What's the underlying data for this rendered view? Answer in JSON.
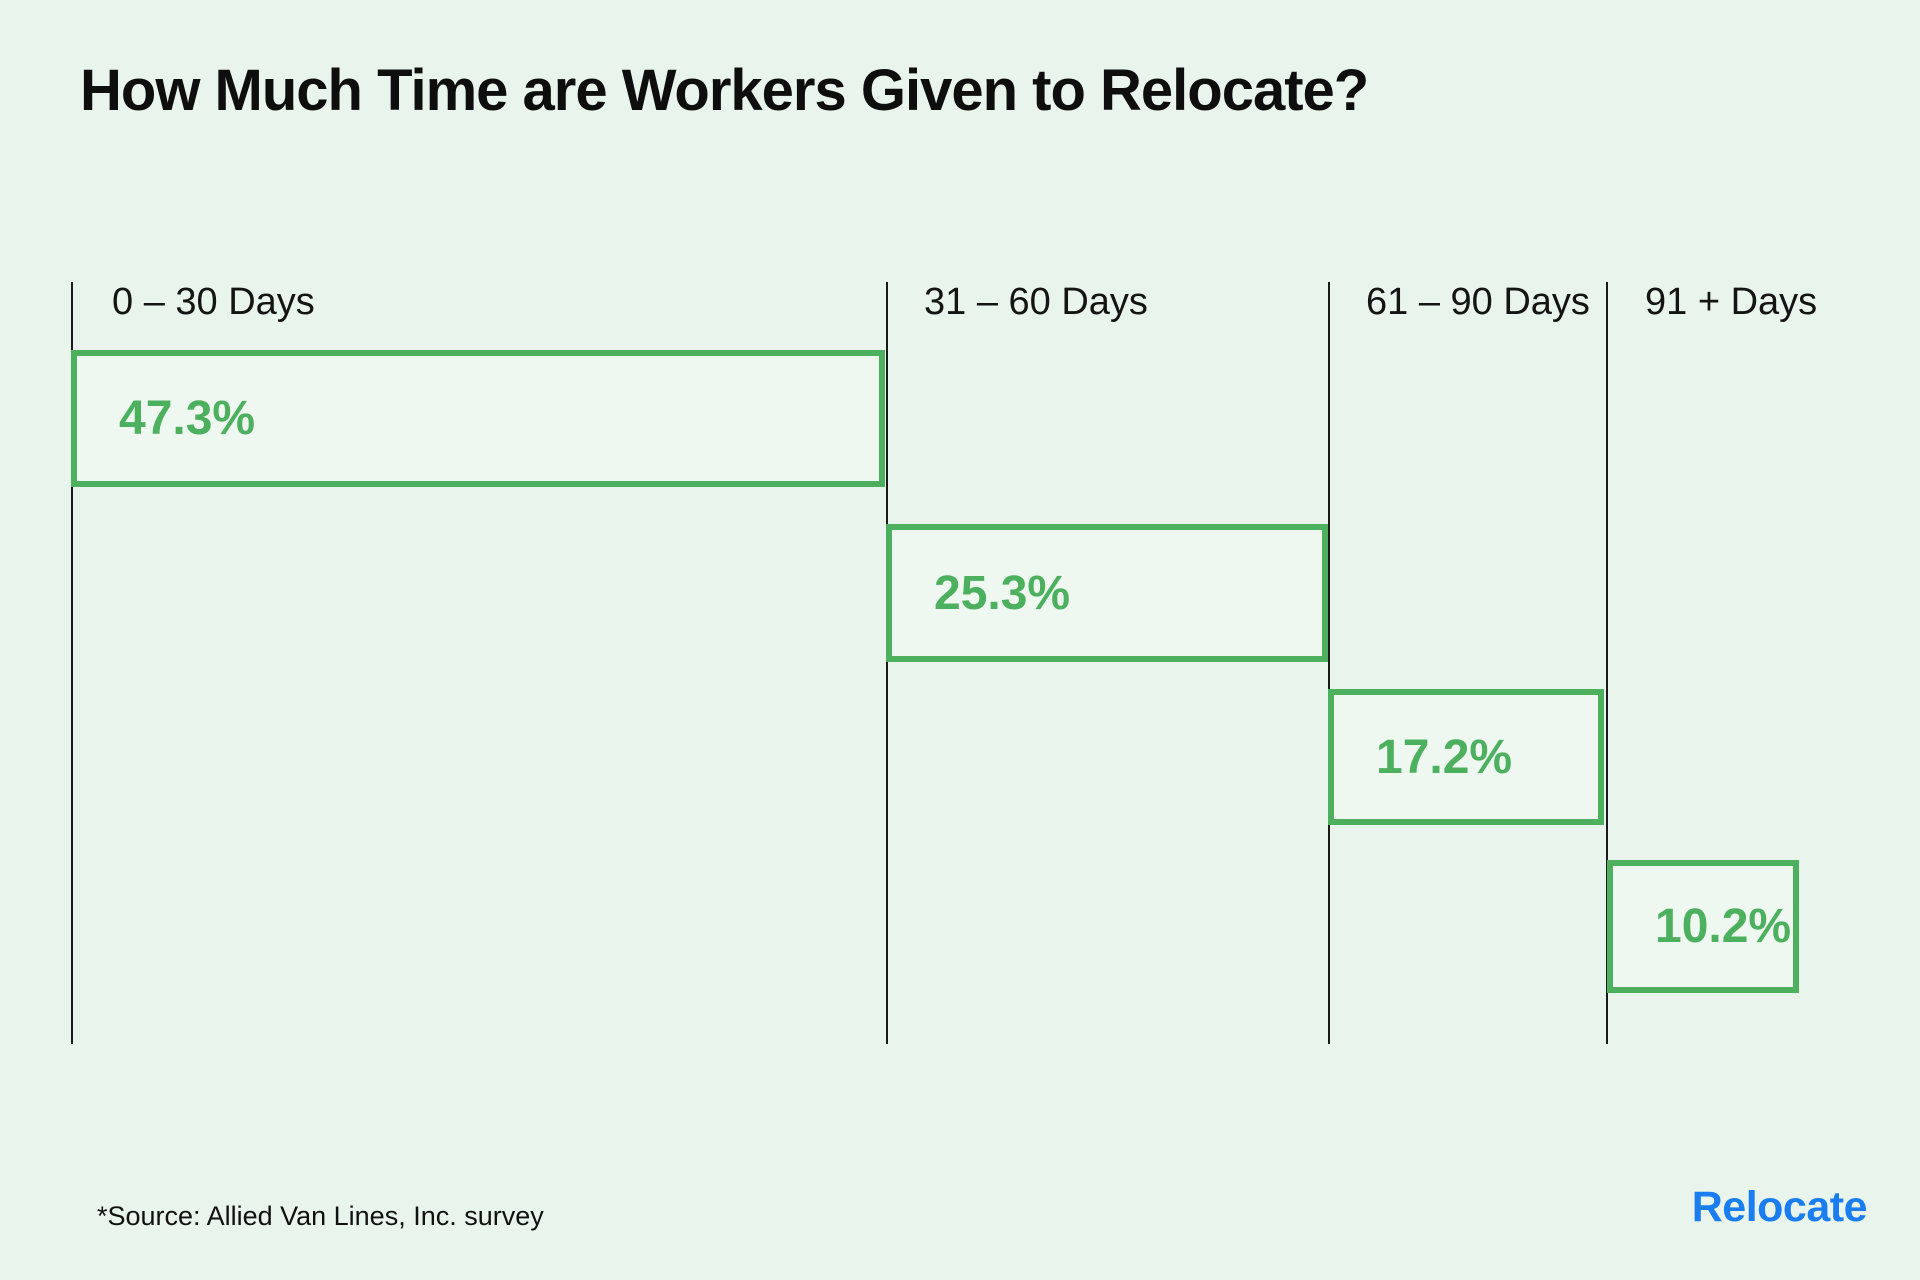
{
  "page": {
    "background_color": "#e9f5ec"
  },
  "header": {
    "title": "How Much Time are Workers Given to Relocate?"
  },
  "chart_data": {
    "type": "bar",
    "subtype": "cascading-horizontal-bars",
    "title": "How Much Time are Workers Given to Relocate?",
    "categories": [
      "0 – 30 Days",
      "31 – 60 Days",
      "61 – 90 Days",
      "91 + Days"
    ],
    "values": [
      47.3,
      25.3,
      17.2,
      10.2
    ],
    "value_labels": [
      "47.3%",
      "25.3%",
      "17.2%",
      "10.2%"
    ],
    "unit": "%",
    "xlabel": "",
    "ylabel": "",
    "legend": "none",
    "grid": "off",
    "bar_border_color": "#4cb05f",
    "bar_fill_color": "#eef8f0",
    "value_label_color": "#4cb05f",
    "axis_line_color": "#1a1a1a",
    "source": "*Source: Allied Van Lines, Inc. survey"
  },
  "footer": {
    "source_note": "*Source: Allied Van Lines, Inc. survey",
    "brand_logo_text": "Relocate",
    "brand_color": "#1a7df0"
  }
}
